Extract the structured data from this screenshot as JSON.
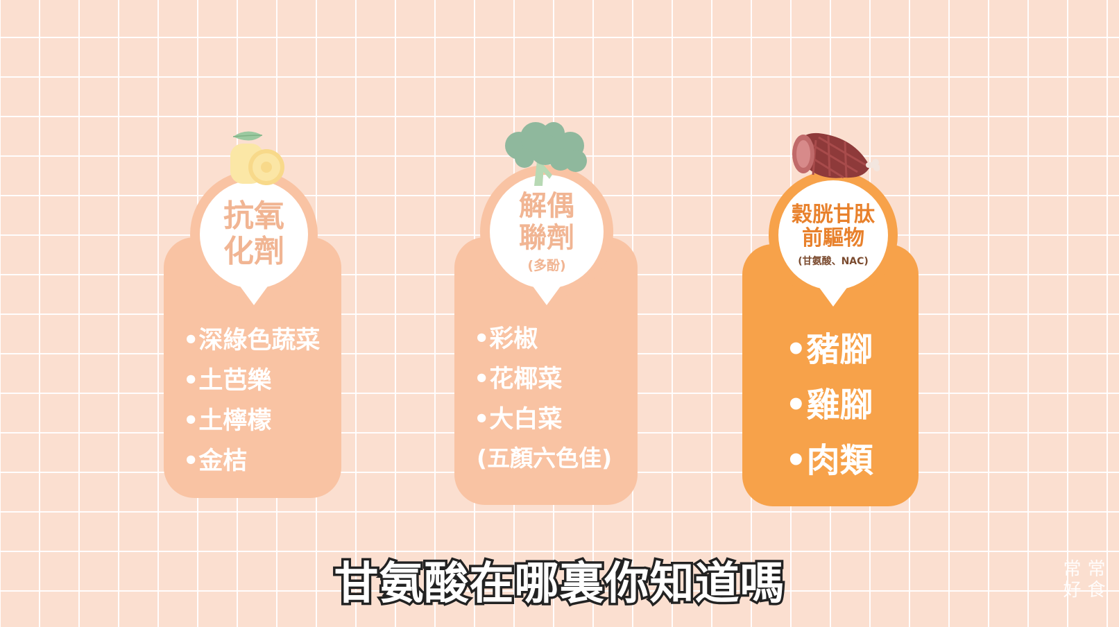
{
  "colors": {
    "background": "#fbdfd0",
    "card_light": "#f9c3a3",
    "card_active": "#f7a24a",
    "title_light": "#f1b593",
    "title_active": "#e8812c",
    "text_light": "#ffffff",
    "text_active": "#ffffff"
  },
  "cards": [
    {
      "icon": "lemon-icon",
      "title": [
        "抗氧",
        "化劑"
      ],
      "note": "",
      "items": [
        "•深綠色蔬菜",
        "•土芭樂",
        "•土檸檬",
        "•金桔"
      ],
      "footnote": ""
    },
    {
      "icon": "broccoli-icon",
      "title": [
        "解偶",
        "聯劑"
      ],
      "note": "(多酚)",
      "items": [
        "•彩椒",
        "•花椰菜",
        "•大白菜"
      ],
      "footnote": "(五顏六色佳)"
    },
    {
      "icon": "ham-icon",
      "title": [
        "穀胱甘肽",
        "前驅物"
      ],
      "note": "(甘氨酸、NAC)",
      "items": [
        "•豬腳",
        "•雞腳",
        "•肉類"
      ],
      "footnote": ""
    }
  ],
  "subtitle": "甘氨酸在哪裏你知道嗎",
  "watermark": {
    "chars": [
      "常",
      "常",
      "好",
      "食"
    ]
  }
}
